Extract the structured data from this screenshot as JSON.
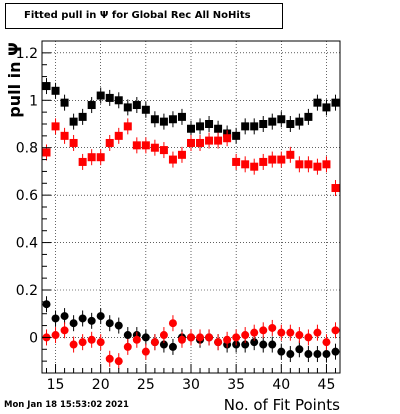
{
  "chart_data": {
    "type": "scatter",
    "title": "Fitted pull in Ψ for Global Rec All NoHits",
    "xlabel": "No. of Fit Points",
    "ylabel": "pull in Ψ",
    "xlim": [
      13.5,
      46.5
    ],
    "ylim": [
      -0.15,
      1.25
    ],
    "x_ticks": [
      "15",
      "20",
      "25",
      "30",
      "35",
      "40",
      "45"
    ],
    "y_ticks": [
      "0",
      "0.2",
      "0.4",
      "0.6",
      "0.8",
      "1",
      "1.2"
    ],
    "grid": true,
    "x": [
      14,
      15,
      16,
      17,
      18,
      19,
      20,
      21,
      22,
      23,
      24,
      25,
      26,
      27,
      28,
      29,
      30,
      31,
      32,
      33,
      34,
      35,
      36,
      37,
      38,
      39,
      40,
      41,
      42,
      43,
      44,
      45,
      46
    ],
    "series": [
      {
        "color": "#000000",
        "marker": "square",
        "values": [
          1.06,
          1.04,
          0.99,
          0.91,
          0.93,
          0.98,
          1.02,
          1.01,
          1.0,
          0.97,
          0.98,
          0.96,
          0.92,
          0.91,
          0.92,
          0.93,
          0.88,
          0.89,
          0.9,
          0.88,
          0.86,
          0.85,
          0.89,
          0.89,
          0.9,
          0.91,
          0.92,
          0.9,
          0.91,
          0.93,
          0.99,
          0.97,
          0.99
        ]
      },
      {
        "color": "#ff0000",
        "marker": "square",
        "values": [
          0.78,
          0.89,
          0.85,
          0.82,
          0.74,
          0.76,
          0.76,
          0.82,
          0.85,
          0.89,
          0.81,
          0.81,
          0.8,
          0.79,
          0.75,
          0.77,
          0.82,
          0.82,
          0.83,
          0.83,
          0.84,
          0.74,
          0.73,
          0.72,
          0.74,
          0.75,
          0.75,
          0.77,
          0.73,
          0.73,
          0.72,
          0.73,
          0.63
        ]
      },
      {
        "color": "#000000",
        "marker": "circle",
        "values": [
          0.14,
          0.08,
          0.09,
          0.06,
          0.08,
          0.07,
          0.09,
          0.06,
          0.05,
          0.01,
          0.01,
          0.0,
          -0.02,
          -0.03,
          -0.04,
          0.0,
          0.0,
          -0.01,
          0.0,
          -0.02,
          -0.03,
          -0.03,
          -0.03,
          -0.02,
          -0.03,
          -0.03,
          -0.06,
          -0.07,
          -0.05,
          -0.07,
          -0.07,
          -0.07,
          -0.06
        ]
      },
      {
        "color": "#ff0000",
        "marker": "circle",
        "values": [
          0.0,
          0.01,
          0.03,
          -0.03,
          -0.02,
          -0.01,
          -0.02,
          -0.09,
          -0.1,
          -0.04,
          -0.01,
          -0.06,
          -0.02,
          0.01,
          0.06,
          -0.01,
          0.0,
          0.0,
          0.0,
          -0.02,
          -0.01,
          0.0,
          0.01,
          0.02,
          0.03,
          0.04,
          0.02,
          0.02,
          0.01,
          0.0,
          0.02,
          -0.02,
          0.03
        ]
      }
    ]
  },
  "footer": {
    "timestamp": "Mon Jan 18 15:53:02 2021"
  }
}
